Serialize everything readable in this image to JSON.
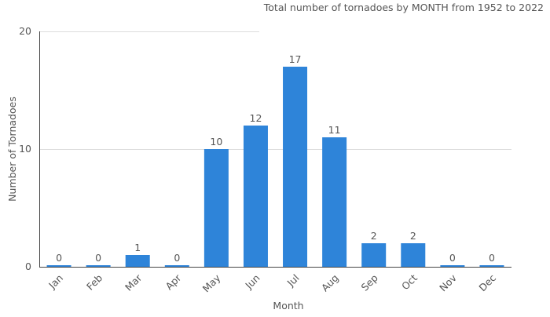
{
  "chart_data": {
    "type": "bar",
    "title": "Total number of tornadoes by MONTH from 1952 to 2022",
    "xlabel": "Month",
    "ylabel": "Number of Tornadoes",
    "categories": [
      "Jan",
      "Feb",
      "Mar",
      "Apr",
      "May",
      "Jun",
      "Jul",
      "Aug",
      "Sep",
      "Oct",
      "Nov",
      "Dec"
    ],
    "values": [
      0,
      0,
      1,
      0,
      10,
      12,
      17,
      11,
      2,
      2,
      0,
      0
    ],
    "ylim": [
      0,
      20
    ],
    "yticks": [
      "0",
      "10",
      "20"
    ],
    "grid": true,
    "legend": "none",
    "bar_color": "#2e84d9"
  }
}
